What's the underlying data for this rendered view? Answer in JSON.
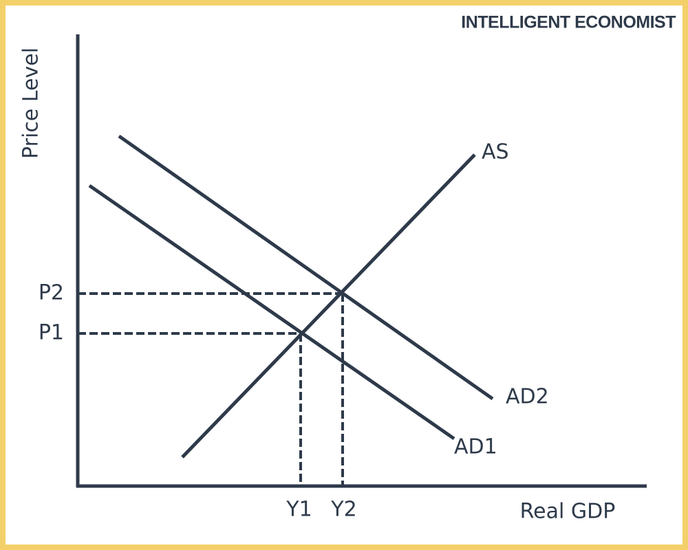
{
  "brand": "INTELLIGENT ECONOMIST",
  "axes": {
    "y_label": "Price Level",
    "x_label": "Real GDP"
  },
  "curves": {
    "as": "AS",
    "ad1": "AD1",
    "ad2": "AD2"
  },
  "price_levels": {
    "p1": "P1",
    "p2": "P2"
  },
  "outputs": {
    "y1": "Y1",
    "y2": "Y2"
  }
}
